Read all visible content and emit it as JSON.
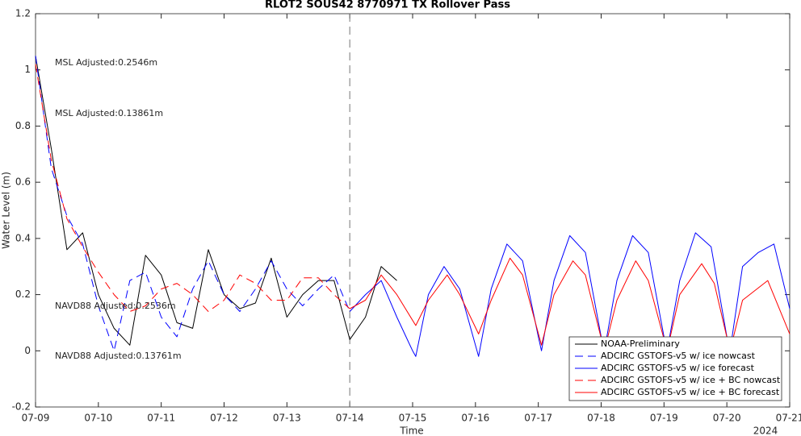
{
  "chart_data": {
    "type": "line",
    "title": "RLOT2 SOUS42 8770971 TX Rollover Pass",
    "ylabel": "Water Level (m)",
    "xlabel": "Time",
    "year_label": "2024",
    "xlim": [
      0,
      12
    ],
    "xticks": [
      {
        "value": 0,
        "label": "07-09"
      },
      {
        "value": 1,
        "label": "07-10"
      },
      {
        "value": 2,
        "label": "07-11"
      },
      {
        "value": 3,
        "label": "07-12"
      },
      {
        "value": 4,
        "label": "07-13"
      },
      {
        "value": 5,
        "label": "07-14"
      },
      {
        "value": 6,
        "label": "07-15"
      },
      {
        "value": 7,
        "label": "07-16"
      },
      {
        "value": 8,
        "label": "07-17"
      },
      {
        "value": 9,
        "label": "07-18"
      },
      {
        "value": 10,
        "label": "07-19"
      },
      {
        "value": 11,
        "label": "07-20"
      },
      {
        "value": 12,
        "label": "07-21"
      }
    ],
    "ylim": [
      -0.2,
      1.2
    ],
    "yticks": [
      -0.2,
      0,
      0.2,
      0.4,
      0.6,
      0.8,
      1,
      1.2
    ],
    "vline": 5,
    "legend": "lower right",
    "annotations": [
      {
        "text": "MSL Adjusted:0.2546m",
        "color": "#0000ff"
      },
      {
        "text": "MSL Adjusted:0.13861m",
        "color": "#ff0000"
      },
      {
        "text": "NAVD88 Adjusted:0.2536m",
        "color": "#0000ff"
      },
      {
        "text": "NAVD88 Adjusted:0.13761m",
        "color": "#ff0000"
      }
    ],
    "series": [
      {
        "name": "NOAA-Preliminary",
        "color": "#000000",
        "dashed": false,
        "x": [
          0,
          0.25,
          0.5,
          0.75,
          1.0,
          1.25,
          1.5,
          1.75,
          2.0,
          2.25,
          2.5,
          2.75,
          3.0,
          3.25,
          3.5,
          3.75,
          4.0,
          4.25,
          4.5,
          4.75,
          5.0,
          5.25,
          5.5,
          5.75
        ],
        "values": [
          1.05,
          0.72,
          0.36,
          0.42,
          0.2,
          0.08,
          0.02,
          0.34,
          0.27,
          0.1,
          0.08,
          0.36,
          0.2,
          0.15,
          0.17,
          0.33,
          0.12,
          0.2,
          0.25,
          0.25,
          0.04,
          0.12,
          0.3,
          0.25
        ]
      },
      {
        "name": "ADCIRC GSTOFS-v5 w/ ice nowcast",
        "color": "#0000ff",
        "dashed": true,
        "x": [
          0,
          0.25,
          0.5,
          0.75,
          1.0,
          1.25,
          1.5,
          1.75,
          2.0,
          2.25,
          2.5,
          2.75,
          3.0,
          3.25,
          3.5,
          3.75,
          4.0,
          4.25,
          4.5,
          4.75,
          5.0
        ],
        "values": [
          1.05,
          0.65,
          0.48,
          0.38,
          0.16,
          0.0,
          0.25,
          0.28,
          0.12,
          0.05,
          0.22,
          0.32,
          0.2,
          0.14,
          0.22,
          0.32,
          0.22,
          0.16,
          0.22,
          0.27,
          0.14
        ]
      },
      {
        "name": "ADCIRC GSTOFS-v5 w/ ice forecast",
        "color": "#0000ff",
        "dashed": false,
        "x": [
          5.0,
          5.25,
          5.5,
          5.75,
          6.0,
          6.05,
          6.25,
          6.5,
          6.75,
          7.0,
          7.05,
          7.25,
          7.5,
          7.75,
          8.0,
          8.05,
          8.25,
          8.5,
          8.75,
          9.0,
          9.05,
          9.25,
          9.5,
          9.75,
          10.0,
          10.05,
          10.25,
          10.5,
          10.75,
          11.0,
          11.05,
          11.25,
          11.5,
          11.75,
          12.0
        ],
        "values": [
          0.14,
          0.2,
          0.25,
          0.12,
          0.0,
          -0.02,
          0.2,
          0.3,
          0.22,
          0.02,
          -0.02,
          0.22,
          0.38,
          0.32,
          0.05,
          0.0,
          0.25,
          0.41,
          0.35,
          0.05,
          0.0,
          0.25,
          0.41,
          0.35,
          0.05,
          0.0,
          0.25,
          0.42,
          0.37,
          0.05,
          0.0,
          0.3,
          0.35,
          0.38,
          0.15
        ]
      },
      {
        "name": "ADCIRC GSTOFS-v5 w/ ice + BC nowcast",
        "color": "#ff0000",
        "dashed": true,
        "x": [
          0,
          0.25,
          0.5,
          0.75,
          1.0,
          1.25,
          1.5,
          1.75,
          2.0,
          2.25,
          2.5,
          2.75,
          3.0,
          3.25,
          3.5,
          3.75,
          4.0,
          4.25,
          4.5,
          4.75,
          5.0
        ],
        "values": [
          1.02,
          0.68,
          0.47,
          0.37,
          0.28,
          0.2,
          0.14,
          0.16,
          0.22,
          0.24,
          0.2,
          0.14,
          0.18,
          0.27,
          0.24,
          0.18,
          0.18,
          0.26,
          0.26,
          0.2,
          0.15
        ]
      },
      {
        "name": "ADCIRC GSTOFS-v5 w/ ice + BC forecast",
        "color": "#ff0000",
        "dashed": false,
        "x": [
          5.0,
          5.25,
          5.5,
          5.75,
          6.05,
          6.25,
          6.55,
          6.75,
          7.05,
          7.25,
          7.55,
          7.75,
          8.05,
          8.25,
          8.55,
          8.75,
          9.05,
          9.25,
          9.55,
          9.75,
          10.05,
          10.25,
          10.6,
          10.8,
          11.05,
          11.25,
          11.65,
          12.0
        ],
        "values": [
          0.15,
          0.18,
          0.27,
          0.2,
          0.09,
          0.18,
          0.27,
          0.2,
          0.06,
          0.18,
          0.33,
          0.27,
          0.02,
          0.2,
          0.32,
          0.27,
          0.0,
          0.18,
          0.32,
          0.25,
          0.0,
          0.2,
          0.31,
          0.24,
          0.0,
          0.18,
          0.25,
          0.06
        ]
      }
    ]
  }
}
